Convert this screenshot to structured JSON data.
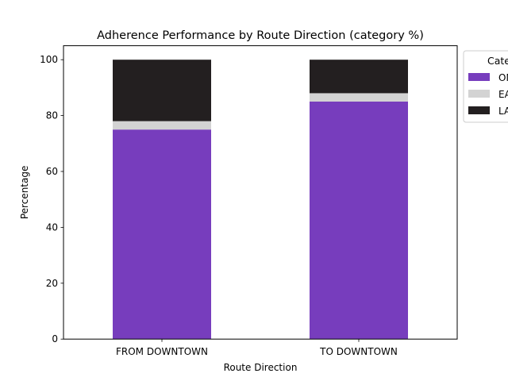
{
  "chart_data": {
    "type": "bar",
    "stacked": true,
    "title": "Adherence Performance by Route Direction (category %)",
    "xlabel": "Route Direction",
    "ylabel": "Percentage",
    "categories": [
      "FROM DOWNTOWN",
      "TO DOWNTOWN"
    ],
    "series": [
      {
        "name": "ON TIME",
        "color": "#773dbd",
        "values": [
          75,
          85
        ]
      },
      {
        "name": "EARLY",
        "color": "#d3d3d3",
        "values": [
          3,
          3
        ]
      },
      {
        "name": "LATE",
        "color": "#231f20",
        "values": [
          22,
          12
        ]
      }
    ],
    "ylim": [
      0,
      105
    ],
    "yticks": [
      0,
      20,
      40,
      60,
      80,
      100
    ],
    "grid": false,
    "legend": {
      "title": "Category",
      "placement": "outside-top-right"
    }
  }
}
